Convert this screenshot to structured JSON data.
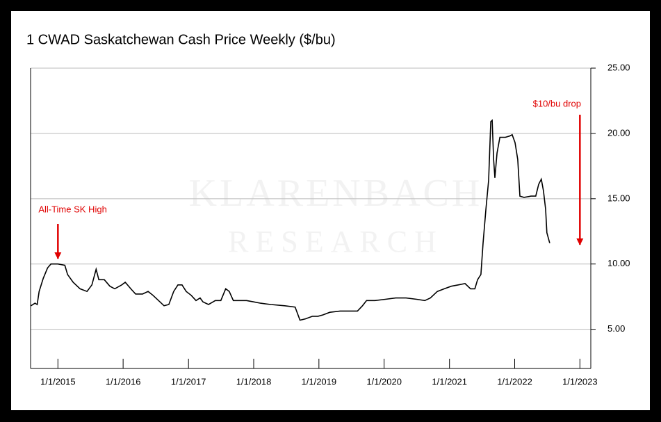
{
  "chart_data": {
    "type": "line",
    "title": "1 CWAD Saskatchewan Cash Price Weekly ($/bu)",
    "watermark": [
      "KLARENBACH",
      "RESEARCH"
    ],
    "annotations": [
      {
        "text": "All-Time SK High",
        "x": "2015-01-01"
      },
      {
        "text": "$10/bu drop",
        "x": "2023-01-01"
      }
    ],
    "x": [
      "2014-08-03",
      "2014-08-26",
      "2014-09-07",
      "2014-09-18",
      "2014-10-11",
      "2014-11-04",
      "2014-11-23",
      "2015-01-01",
      "2015-02-09",
      "2015-02-24",
      "2015-03-27",
      "2015-05-05",
      "2015-06-13",
      "2015-07-10",
      "2015-08-03",
      "2015-08-18",
      "2015-09-18",
      "2015-10-19",
      "2015-11-15",
      "2015-12-24",
      "2016-01-13",
      "2016-02-13",
      "2016-03-11",
      "2016-04-19",
      "2016-05-20",
      "2016-06-16",
      "2016-07-25",
      "2016-08-17",
      "2016-09-13",
      "2016-10-10",
      "2016-11-03",
      "2016-11-26",
      "2016-12-19",
      "2017-01-16",
      "2017-02-12",
      "2017-03-07",
      "2017-03-23",
      "2017-04-23",
      "2017-05-31",
      "2017-07-01",
      "2017-07-28",
      "2017-08-17",
      "2017-09-09",
      "2017-10-14",
      "2017-11-22",
      "2017-12-31",
      "2018-02-08",
      "2018-04-07",
      "2018-06-24",
      "2018-08-21",
      "2018-09-17",
      "2018-10-18",
      "2018-11-26",
      "2018-12-27",
      "2019-01-23",
      "2019-03-03",
      "2019-04-30",
      "2019-06-28",
      "2019-08-05",
      "2019-09-02",
      "2019-09-25",
      "2019-11-11",
      "2020-01-08",
      "2020-03-06",
      "2020-05-03",
      "2020-07-01",
      "2020-08-16",
      "2020-09-16",
      "2020-10-25",
      "2020-12-03",
      "2021-01-11",
      "2021-02-19",
      "2021-03-29",
      "2021-04-29",
      "2021-05-23",
      "2021-06-07",
      "2021-06-26",
      "2021-07-08",
      "2021-07-24",
      "2021-08-08",
      "2021-08-20",
      "2021-08-28",
      "2021-09-05",
      "2021-09-12",
      "2021-09-24",
      "2021-10-10",
      "2021-11-10",
      "2021-12-03",
      "2021-12-18",
      "2022-01-03",
      "2022-01-18",
      "2022-01-30",
      "2022-02-22",
      "2022-04-02",
      "2022-04-29",
      "2022-05-15",
      "2022-05-30",
      "2022-06-11",
      "2022-06-23",
      "2022-06-30",
      "2022-07-16"
    ],
    "series": [
      {
        "name": "1 CWAD",
        "color": "#000000",
        "values": [
          6.8,
          7.0,
          6.9,
          7.9,
          8.9,
          9.7,
          10.0,
          10.0,
          9.9,
          9.2,
          8.6,
          8.1,
          7.9,
          8.4,
          9.6,
          8.8,
          8.8,
          8.3,
          8.1,
          8.4,
          8.6,
          8.1,
          7.7,
          7.7,
          7.9,
          7.6,
          7.1,
          6.8,
          6.9,
          7.9,
          8.4,
          8.4,
          7.9,
          7.6,
          7.2,
          7.4,
          7.1,
          6.9,
          7.2,
          7.2,
          8.1,
          7.9,
          7.2,
          7.2,
          7.2,
          7.1,
          7.0,
          6.9,
          6.8,
          6.7,
          5.7,
          5.8,
          6.0,
          6.0,
          6.1,
          6.3,
          6.4,
          6.4,
          6.4,
          6.8,
          7.2,
          7.2,
          7.3,
          7.4,
          7.4,
          7.3,
          7.2,
          7.4,
          7.9,
          8.1,
          8.3,
          8.4,
          8.5,
          8.1,
          8.1,
          8.8,
          9.2,
          11.6,
          14.2,
          16.4,
          20.9,
          21.0,
          18.0,
          16.6,
          18.5,
          19.7,
          19.7,
          19.8,
          19.9,
          19.3,
          18.0,
          15.2,
          15.1,
          15.2,
          15.2,
          16.1,
          16.5,
          15.6,
          14.2,
          12.4,
          11.6
        ]
      }
    ],
    "xlim": [
      "2014-08-01",
      "2023-03-03"
    ],
    "xticks": [
      {
        "value": "2015-01-01",
        "label": "1/1/2015"
      },
      {
        "value": "2016-01-01",
        "label": "1/1/2016"
      },
      {
        "value": "2017-01-01",
        "label": "1/1/2017"
      },
      {
        "value": "2018-01-01",
        "label": "1/1/2018"
      },
      {
        "value": "2019-01-01",
        "label": "1/1/2019"
      },
      {
        "value": "2020-01-01",
        "label": "1/1/2020"
      },
      {
        "value": "2021-01-01",
        "label": "1/1/2021"
      },
      {
        "value": "2022-01-01",
        "label": "1/1/2022"
      },
      {
        "value": "2023-01-01",
        "label": "1/1/2023"
      }
    ],
    "ylim": [
      2,
      25
    ],
    "yticks": [
      {
        "value": 5,
        "label": "5.00"
      },
      {
        "value": 10,
        "label": "10.00"
      },
      {
        "value": 15,
        "label": "15.00"
      },
      {
        "value": 20,
        "label": "20.00"
      },
      {
        "value": 25,
        "label": "25.00"
      }
    ],
    "grid": true,
    "annotation_color": "#e00000"
  }
}
